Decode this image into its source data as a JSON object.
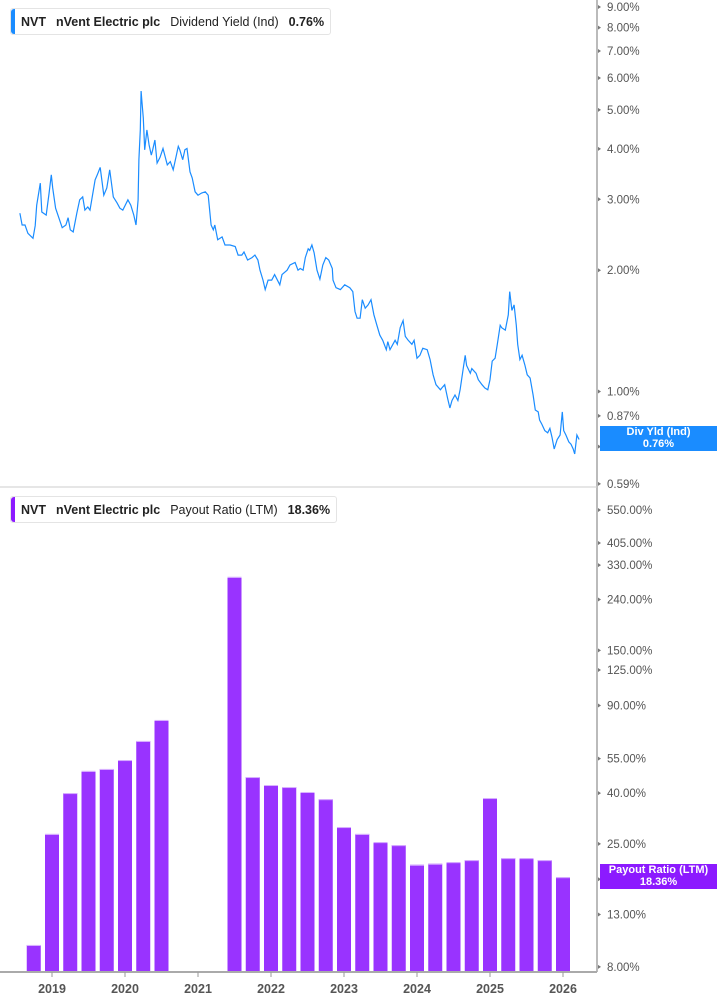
{
  "colors": {
    "yield": "#1a8cff",
    "payout": "#9933ff",
    "payout_tag": "#8c1aff"
  },
  "top_legend": {
    "ticker": "NVT",
    "company": "nVent Electric plc",
    "metric": "Dividend Yield (Ind)",
    "value": "0.76%"
  },
  "bottom_legend": {
    "ticker": "NVT",
    "company": "nVent Electric plc",
    "metric": "Payout Ratio (LTM)",
    "value": "18.36%"
  },
  "top_tag": {
    "label": "Div Yld (Ind)",
    "value": "0.76%"
  },
  "bottom_tag": {
    "label": "Payout Ratio (LTM)",
    "value": "18.36%"
  },
  "chart_data": [
    {
      "type": "line",
      "scale": "log",
      "grid": false,
      "series": [
        {
          "name": "Div Yld (Ind)",
          "points": [
            [
              2018.56,
              2.77
            ],
            [
              2018.59,
              2.59
            ],
            [
              2018.63,
              2.59
            ],
            [
              2018.67,
              2.47
            ],
            [
              2018.74,
              2.4
            ],
            [
              2018.77,
              2.58
            ],
            [
              2018.79,
              2.9
            ],
            [
              2018.84,
              3.29
            ],
            [
              2018.86,
              2.79
            ],
            [
              2018.92,
              2.74
            ],
            [
              2018.96,
              3.11
            ],
            [
              2018.99,
              3.45
            ],
            [
              2019.01,
              3.2
            ],
            [
              2019.05,
              2.85
            ],
            [
              2019.14,
              2.55
            ],
            [
              2019.19,
              2.59
            ],
            [
              2019.22,
              2.7
            ],
            [
              2019.25,
              2.52
            ],
            [
              2019.29,
              2.49
            ],
            [
              2019.34,
              2.77
            ],
            [
              2019.38,
              2.99
            ],
            [
              2019.42,
              3.04
            ],
            [
              2019.45,
              2.82
            ],
            [
              2019.49,
              2.87
            ],
            [
              2019.52,
              2.82
            ],
            [
              2019.59,
              3.35
            ],
            [
              2019.62,
              3.45
            ],
            [
              2019.66,
              3.6
            ],
            [
              2019.71,
              3.07
            ],
            [
              2019.75,
              3.2
            ],
            [
              2019.79,
              3.55
            ],
            [
              2019.84,
              3.04
            ],
            [
              2019.89,
              2.94
            ],
            [
              2019.93,
              2.85
            ],
            [
              2019.97,
              2.82
            ],
            [
              2020.04,
              2.99
            ],
            [
              2020.08,
              2.9
            ],
            [
              2020.12,
              2.74
            ],
            [
              2020.15,
              2.59
            ],
            [
              2020.18,
              2.99
            ],
            [
              2020.19,
              3.76
            ],
            [
              2020.21,
              4.46
            ],
            [
              2020.22,
              5.57
            ],
            [
              2020.23,
              5.29
            ],
            [
              2020.25,
              4.77
            ],
            [
              2020.27,
              3.98
            ],
            [
              2020.3,
              4.46
            ],
            [
              2020.33,
              4.09
            ],
            [
              2020.36,
              3.86
            ],
            [
              2020.38,
              3.98
            ],
            [
              2020.41,
              4.21
            ],
            [
              2020.44,
              3.69
            ],
            [
              2020.48,
              3.81
            ],
            [
              2020.52,
              4.01
            ],
            [
              2020.58,
              3.65
            ],
            [
              2020.62,
              3.72
            ],
            [
              2020.66,
              3.55
            ],
            [
              2020.7,
              3.83
            ],
            [
              2020.73,
              4.06
            ],
            [
              2020.75,
              3.98
            ],
            [
              2020.79,
              3.76
            ],
            [
              2020.82,
              3.98
            ],
            [
              2020.85,
              4.01
            ],
            [
              2020.89,
              3.51
            ],
            [
              2020.92,
              3.39
            ],
            [
              2020.96,
              3.13
            ],
            [
              2021.0,
              3.07
            ],
            [
              2021.05,
              3.11
            ],
            [
              2021.1,
              3.13
            ],
            [
              2021.14,
              3.07
            ],
            [
              2021.18,
              2.59
            ],
            [
              2021.21,
              2.52
            ],
            [
              2021.23,
              2.59
            ],
            [
              2021.27,
              2.38
            ],
            [
              2021.33,
              2.42
            ],
            [
              2021.37,
              2.31
            ],
            [
              2021.44,
              2.31
            ],
            [
              2021.51,
              2.29
            ],
            [
              2021.55,
              2.18
            ],
            [
              2021.6,
              2.18
            ],
            [
              2021.63,
              2.22
            ],
            [
              2021.68,
              2.12
            ],
            [
              2021.74,
              2.15
            ],
            [
              2021.78,
              2.18
            ],
            [
              2021.82,
              2.12
            ],
            [
              2021.85,
              2.0
            ],
            [
              2021.89,
              1.89
            ],
            [
              2021.92,
              1.79
            ],
            [
              2021.96,
              1.89
            ],
            [
              2022.01,
              1.89
            ],
            [
              2022.05,
              1.95
            ],
            [
              2022.12,
              1.84
            ],
            [
              2022.15,
              1.95
            ],
            [
              2022.22,
              2.0
            ],
            [
              2022.26,
              2.06
            ],
            [
              2022.33,
              2.09
            ],
            [
              2022.37,
              2.0
            ],
            [
              2022.4,
              2.02
            ],
            [
              2022.44,
              2.0
            ],
            [
              2022.47,
              2.15
            ],
            [
              2022.51,
              2.26
            ],
            [
              2022.53,
              2.24
            ],
            [
              2022.56,
              2.31
            ],
            [
              2022.59,
              2.21
            ],
            [
              2022.63,
              2.0
            ],
            [
              2022.67,
              1.9
            ],
            [
              2022.71,
              2.06
            ],
            [
              2022.75,
              2.15
            ],
            [
              2022.79,
              2.12
            ],
            [
              2022.84,
              2.02
            ],
            [
              2022.85,
              1.89
            ],
            [
              2022.89,
              1.81
            ],
            [
              2022.95,
              1.79
            ],
            [
              2023.01,
              1.84
            ],
            [
              2023.08,
              1.81
            ],
            [
              2023.12,
              1.77
            ],
            [
              2023.15,
              1.58
            ],
            [
              2023.18,
              1.52
            ],
            [
              2023.22,
              1.52
            ],
            [
              2023.25,
              1.69
            ],
            [
              2023.29,
              1.61
            ],
            [
              2023.33,
              1.64
            ],
            [
              2023.37,
              1.69
            ],
            [
              2023.41,
              1.55
            ],
            [
              2023.45,
              1.46
            ],
            [
              2023.49,
              1.38
            ],
            [
              2023.53,
              1.34
            ],
            [
              2023.58,
              1.27
            ],
            [
              2023.6,
              1.33
            ],
            [
              2023.63,
              1.27
            ],
            [
              2023.7,
              1.34
            ],
            [
              2023.73,
              1.31
            ],
            [
              2023.77,
              1.44
            ],
            [
              2023.81,
              1.5
            ],
            [
              2023.84,
              1.37
            ],
            [
              2023.88,
              1.34
            ],
            [
              2023.93,
              1.31
            ],
            [
              2023.96,
              1.34
            ],
            [
              2024.0,
              1.21
            ],
            [
              2024.04,
              1.23
            ],
            [
              2024.08,
              1.28
            ],
            [
              2024.14,
              1.27
            ],
            [
              2024.18,
              1.2
            ],
            [
              2024.22,
              1.1
            ],
            [
              2024.26,
              1.04
            ],
            [
              2024.32,
              1.01
            ],
            [
              2024.34,
              1.02
            ],
            [
              2024.38,
              1.04
            ],
            [
              2024.42,
              0.96
            ],
            [
              2024.45,
              0.91
            ],
            [
              2024.48,
              0.95
            ],
            [
              2024.52,
              0.98
            ],
            [
              2024.56,
              0.95
            ],
            [
              2024.59,
              1.01
            ],
            [
              2024.63,
              1.13
            ],
            [
              2024.66,
              1.23
            ],
            [
              2024.68,
              1.16
            ],
            [
              2024.73,
              1.11
            ],
            [
              2024.75,
              1.14
            ],
            [
              2024.81,
              1.11
            ],
            [
              2024.84,
              1.07
            ],
            [
              2024.89,
              1.04
            ],
            [
              2024.93,
              1.02
            ],
            [
              2024.97,
              1.01
            ],
            [
              2025.0,
              1.07
            ],
            [
              2025.03,
              1.19
            ],
            [
              2025.07,
              1.21
            ],
            [
              2025.1,
              1.31
            ],
            [
              2025.14,
              1.46
            ],
            [
              2025.16,
              1.44
            ],
            [
              2025.21,
              1.42
            ],
            [
              2025.25,
              1.55
            ],
            [
              2025.27,
              1.77
            ],
            [
              2025.3,
              1.59
            ],
            [
              2025.33,
              1.64
            ],
            [
              2025.36,
              1.46
            ],
            [
              2025.38,
              1.31
            ],
            [
              2025.41,
              1.2
            ],
            [
              2025.44,
              1.23
            ],
            [
              2025.48,
              1.16
            ],
            [
              2025.51,
              1.1
            ],
            [
              2025.55,
              1.08
            ],
            [
              2025.59,
              0.98
            ],
            [
              2025.62,
              0.9
            ],
            [
              2025.66,
              0.89
            ],
            [
              2025.68,
              0.85
            ],
            [
              2025.71,
              0.83
            ],
            [
              2025.75,
              0.8
            ],
            [
              2025.79,
              0.79
            ],
            [
              2025.82,
              0.81
            ],
            [
              2025.85,
              0.77
            ],
            [
              2025.88,
              0.72
            ],
            [
              2025.92,
              0.76
            ],
            [
              2025.96,
              0.78
            ],
            [
              2025.99,
              0.89
            ],
            [
              2026.01,
              0.8
            ],
            [
              2026.04,
              0.78
            ],
            [
              2026.08,
              0.75
            ],
            [
              2026.11,
              0.74
            ],
            [
              2026.14,
              0.72
            ],
            [
              2026.16,
              0.7
            ],
            [
              2026.19,
              0.78
            ],
            [
              2026.22,
              0.76
            ]
          ]
        }
      ],
      "y_ticks": [
        "9.00%",
        "8.00%",
        "7.00%",
        "6.00%",
        "5.00%",
        "4.00%",
        "3.00%",
        "2.00%",
        "1.00%",
        "0.87%",
        "0.73%",
        "0.59%"
      ],
      "y_tick_values": [
        9,
        8,
        7,
        6,
        5,
        4,
        3,
        2,
        1,
        0.87,
        0.73,
        0.59
      ],
      "ylim": [
        0.59,
        9
      ]
    },
    {
      "type": "bar",
      "scale": "log",
      "grid": false,
      "x": [
        2018.75,
        2019.0,
        2019.25,
        2019.5,
        2019.75,
        2020.0,
        2020.25,
        2020.5,
        2021.5,
        2021.75,
        2022.0,
        2022.25,
        2022.5,
        2022.75,
        2023.0,
        2023.25,
        2023.5,
        2023.75,
        2024.0,
        2024.25,
        2024.5,
        2024.75,
        2025.0,
        2025.25,
        2025.5,
        2025.75,
        2026.0
      ],
      "series": [
        {
          "name": "Payout Ratio (LTM)",
          "values": [
            9.8,
            27.4,
            40.0,
            49.1,
            50.0,
            54.3,
            64.8,
            78.7,
            296,
            46.4,
            43.1,
            42.3,
            40.4,
            37.8,
            29.2,
            27.4,
            25.4,
            24.7,
            20.6,
            20.8,
            21.1,
            21.5,
            38.2,
            21.9,
            21.9,
            21.5,
            18.36
          ]
        }
      ],
      "y_ticks": [
        "550.00%",
        "405.00%",
        "330.00%",
        "240.00%",
        "150.00%",
        "125.00%",
        "90.00%",
        "55.00%",
        "40.00%",
        "25.00%",
        "18.00%",
        "13.00%",
        "8.00%"
      ],
      "y_tick_values": [
        550,
        405,
        330,
        240,
        150,
        125,
        90,
        55,
        40,
        25,
        18,
        13,
        8
      ],
      "ylim": [
        7.5,
        550
      ],
      "x_ticks": [
        "2019",
        "2020",
        "2021",
        "2022",
        "2023",
        "2024",
        "2025",
        "2026"
      ],
      "x_tick_values": [
        2019,
        2020,
        2021,
        2022,
        2023,
        2024,
        2025,
        2026
      ]
    }
  ]
}
